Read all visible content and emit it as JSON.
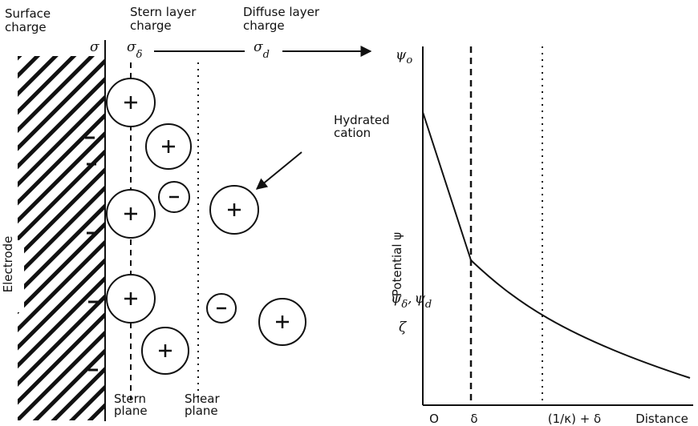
{
  "labels": {
    "surface_charge": [
      "Surface",
      "charge"
    ],
    "stern_layer_charge": [
      "Stern layer",
      "charge"
    ],
    "diffuse_layer_charge": [
      "Diffuse layer",
      "charge"
    ],
    "hydrated_cation": [
      "Hydrated",
      "cation"
    ],
    "electrode": "Electrode",
    "stern_plane": [
      "Stern",
      "plane"
    ],
    "shear_plane": [
      "Shear",
      "plane"
    ]
  },
  "symbols": {
    "sigma": "σ",
    "sigma_stern": {
      "symbol": "σ",
      "subscript": "δ"
    },
    "sigma_diffuse": {
      "symbol": "σ",
      "subscript": "d"
    }
  },
  "graph": {
    "y_axis_label": "Potential ψ",
    "psi_0": {
      "symbol": "ψ",
      "subscript": "o"
    },
    "psi_stern": {
      "symbol": "ψ",
      "subscript": "δ",
      "separator": ",",
      "symbol2": "ψ",
      "subscript2": "d"
    },
    "zeta": "ζ",
    "x_labels": [
      "O",
      "δ",
      "(1/κ) + δ",
      "Distance"
    ]
  }
}
